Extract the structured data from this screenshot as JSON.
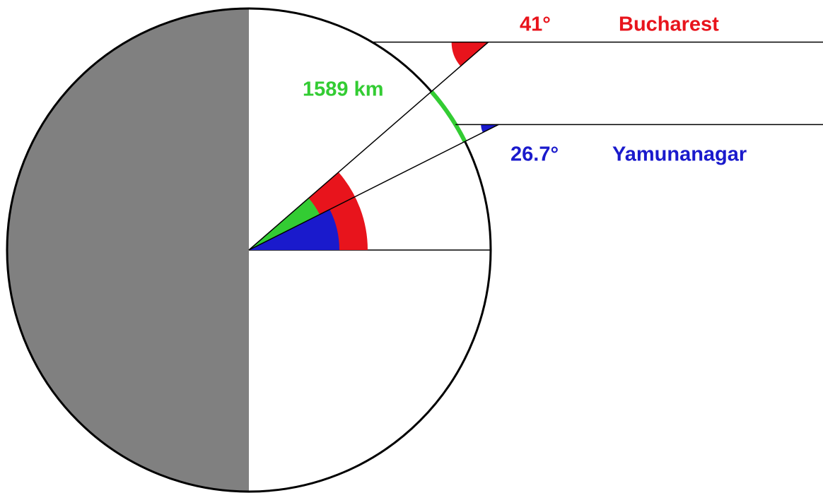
{
  "places": [
    {
      "name": "Bucharest",
      "latitude": {
        "value": 41,
        "label": "41°"
      },
      "color": "#e8141c"
    },
    {
      "name": "Yamunanagar",
      "latitude": {
        "value": 26.7,
        "label": "26.7°"
      },
      "color": "#1a1acc"
    }
  ],
  "distance": {
    "label": "1589 km",
    "color": "#33cc33"
  }
}
